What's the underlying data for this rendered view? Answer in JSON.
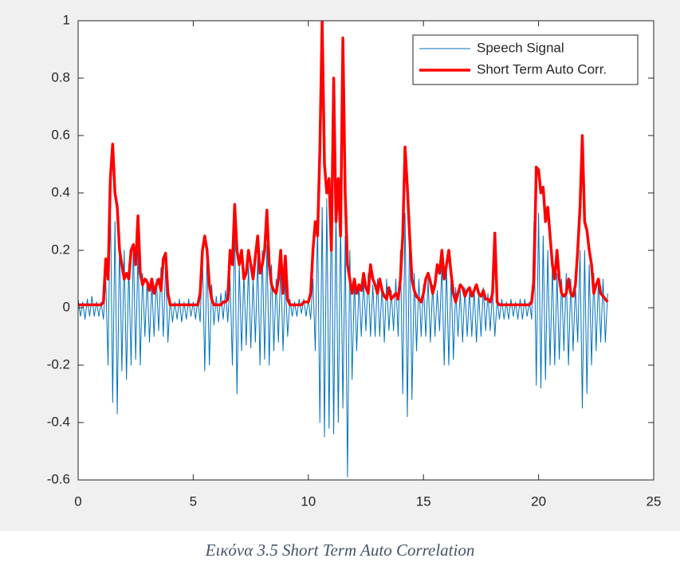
{
  "chart_data": {
    "type": "line",
    "caption": "Εικόνα 3.5 Short Term Auto Correlation",
    "x": [
      0,
      0.1,
      0.2,
      0.3,
      0.4,
      0.5,
      0.6,
      0.7,
      0.8,
      0.9,
      1,
      1.1,
      1.2,
      1.3,
      1.4,
      1.5,
      1.6,
      1.7,
      1.8,
      1.9,
      2,
      2.1,
      2.2,
      2.3,
      2.4,
      2.5,
      2.6,
      2.7,
      2.8,
      2.9,
      3,
      3.1,
      3.2,
      3.3,
      3.4,
      3.5,
      3.6,
      3.7,
      3.8,
      3.9,
      4,
      4.1,
      4.2,
      4.3,
      4.4,
      4.5,
      4.6,
      4.7,
      4.8,
      4.9,
      5,
      5.1,
      5.2,
      5.3,
      5.4,
      5.5,
      5.6,
      5.7,
      5.8,
      5.9,
      6,
      6.1,
      6.2,
      6.3,
      6.4,
      6.5,
      6.6,
      6.7,
      6.8,
      6.9,
      7,
      7.1,
      7.2,
      7.3,
      7.4,
      7.5,
      7.6,
      7.7,
      7.8,
      7.9,
      8,
      8.1,
      8.2,
      8.3,
      8.4,
      8.5,
      8.6,
      8.7,
      8.8,
      8.9,
      9,
      9.1,
      9.2,
      9.3,
      9.4,
      9.5,
      9.6,
      9.7,
      9.8,
      9.9,
      10,
      10.1,
      10.2,
      10.3,
      10.4,
      10.5,
      10.6,
      10.7,
      10.8,
      10.9,
      11,
      11.1,
      11.2,
      11.3,
      11.4,
      11.5,
      11.6,
      11.7,
      11.8,
      11.9,
      12,
      12.1,
      12.2,
      12.3,
      12.4,
      12.5,
      12.6,
      12.7,
      12.8,
      12.9,
      13,
      13.1,
      13.2,
      13.3,
      13.4,
      13.5,
      13.6,
      13.7,
      13.8,
      13.9,
      14,
      14.1,
      14.2,
      14.3,
      14.4,
      14.5,
      14.6,
      14.7,
      14.8,
      14.9,
      15,
      15.1,
      15.2,
      15.3,
      15.4,
      15.5,
      15.6,
      15.7,
      15.8,
      15.9,
      16,
      16.1,
      16.2,
      16.3,
      16.4,
      16.5,
      16.6,
      16.7,
      16.8,
      16.9,
      17,
      17.1,
      17.2,
      17.3,
      17.4,
      17.5,
      17.6,
      17.7,
      17.8,
      17.9,
      18,
      18.1,
      18.2,
      18.3,
      18.4,
      18.5,
      18.6,
      18.7,
      18.8,
      18.9,
      19,
      19.1,
      19.2,
      19.3,
      19.4,
      19.5,
      19.6,
      19.7,
      19.8,
      19.9,
      20,
      20.1,
      20.2,
      20.3,
      20.4,
      20.5,
      20.6,
      20.7,
      20.8,
      20.9,
      21,
      21.1,
      21.2,
      21.3,
      21.4,
      21.5,
      21.6,
      21.7,
      21.8,
      21.9,
      22,
      22.1,
      22.2,
      22.3,
      22.4,
      22.5,
      22.6,
      22.7,
      22.8,
      22.9,
      23
    ],
    "series": [
      {
        "name": "Speech Signal",
        "color": "#0072bd",
        "width": 1,
        "values": [
          0.03,
          -0.03,
          0.02,
          -0.04,
          0.03,
          -0.03,
          0.04,
          -0.03,
          0.02,
          -0.03,
          0.02,
          -0.04,
          0.1,
          -0.2,
          0.39,
          -0.33,
          0.3,
          -0.37,
          0.25,
          -0.22,
          0.2,
          -0.25,
          0.15,
          -0.2,
          0.22,
          -0.18,
          0.2,
          -0.2,
          0.12,
          -0.1,
          0.1,
          -0.12,
          0.08,
          -0.1,
          0.1,
          -0.08,
          0.14,
          -0.1,
          0.15,
          -0.12,
          0.03,
          -0.05,
          0.02,
          -0.04,
          0.03,
          -0.05,
          0.02,
          -0.04,
          0.03,
          -0.03,
          0.02,
          -0.04,
          0.03,
          -0.05,
          0.18,
          -0.22,
          0.2,
          -0.2,
          0.08,
          -0.06,
          0.04,
          -0.05,
          0.05,
          -0.04,
          0.06,
          -0.05,
          0.1,
          -0.2,
          0.3,
          -0.3,
          0.15,
          -0.15,
          0.12,
          -0.13,
          0.15,
          -0.14,
          0.1,
          -0.12,
          0.18,
          -0.2,
          0.2,
          -0.18,
          0.22,
          -0.2,
          0.15,
          -0.15,
          0.1,
          -0.12,
          0.15,
          -0.15,
          0.1,
          -0.1,
          0.03,
          -0.03,
          0.02,
          -0.03,
          0.03,
          -0.02,
          0.03,
          -0.03,
          0.03,
          -0.04,
          0.1,
          -0.15,
          0.3,
          -0.4,
          0.35,
          -0.45,
          0.38,
          -0.42,
          0.4,
          -0.44,
          0.35,
          -0.4,
          0.3,
          -0.35,
          0.25,
          -0.59,
          0.2,
          -0.25,
          0.1,
          -0.15,
          0.08,
          -0.1,
          0.1,
          -0.08,
          0.12,
          -0.1,
          0.08,
          -0.1,
          0.1,
          -0.1,
          0.08,
          -0.12,
          0.1,
          -0.08,
          0.06,
          -0.08,
          0.1,
          -0.1,
          0.2,
          -0.3,
          0.33,
          -0.38,
          0.3,
          -0.32,
          0.12,
          -0.15,
          0.1,
          -0.1,
          0.08,
          -0.1,
          0.1,
          -0.12,
          0.08,
          -0.1,
          0.06,
          -0.08,
          0.15,
          -0.2,
          0.15,
          -0.2,
          0.12,
          -0.18,
          0.07,
          -0.1,
          0.06,
          -0.12,
          0.07,
          -0.1,
          0.06,
          -0.1,
          0.07,
          -0.12,
          0.05,
          -0.1,
          0.07,
          -0.08,
          0.05,
          -0.08,
          0.06,
          -0.1,
          0.03,
          -0.04,
          0.03,
          -0.04,
          0.02,
          -0.04,
          0.03,
          -0.03,
          0.02,
          -0.04,
          0.03,
          -0.04,
          0.03,
          -0.03,
          0.02,
          -0.04,
          0.3,
          -0.27,
          0.33,
          -0.28,
          0.25,
          -0.25,
          0.2,
          -0.2,
          0.15,
          -0.2,
          0.12,
          -0.18,
          0.1,
          -0.15,
          0.12,
          -0.2,
          0.1,
          -0.15,
          0.08,
          -0.12,
          0.2,
          -0.35,
          0.2,
          -0.3,
          0.15,
          -0.2,
          0.12,
          -0.15,
          0.1,
          -0.12,
          0.1,
          -0.12,
          0.05
        ]
      },
      {
        "name": "Short Term Auto Corr.",
        "color": "#ff0000",
        "width": 3.5,
        "values": [
          0.01,
          0.01,
          0.01,
          0.01,
          0.01,
          0.01,
          0.01,
          0.01,
          0.01,
          0.01,
          0.01,
          0.02,
          0.17,
          0.1,
          0.45,
          0.57,
          0.4,
          0.35,
          0.2,
          0.15,
          0.1,
          0.12,
          0.1,
          0.2,
          0.22,
          0.15,
          0.32,
          0.12,
          0.08,
          0.1,
          0.09,
          0.06,
          0.1,
          0.05,
          0.08,
          0.1,
          0.06,
          0.17,
          0.19,
          0.05,
          0.01,
          0.01,
          0.01,
          0.01,
          0.01,
          0.01,
          0.01,
          0.01,
          0.01,
          0.01,
          0.01,
          0.01,
          0.01,
          0.05,
          0.2,
          0.25,
          0.2,
          0.08,
          0.03,
          0.01,
          0.01,
          0.01,
          0.01,
          0.02,
          0.02,
          0.03,
          0.2,
          0.15,
          0.36,
          0.2,
          0.15,
          0.2,
          0.1,
          0.12,
          0.2,
          0.15,
          0.1,
          0.18,
          0.25,
          0.12,
          0.15,
          0.2,
          0.34,
          0.15,
          0.08,
          0.06,
          0.05,
          0.1,
          0.2,
          0.05,
          0.18,
          0.03,
          0.01,
          0.01,
          0.01,
          0.01,
          0.01,
          0.01,
          0.02,
          0.02,
          0.02,
          0.05,
          0.2,
          0.3,
          0.25,
          0.55,
          1.0,
          0.5,
          0.4,
          0.45,
          0.2,
          0.8,
          0.3,
          0.45,
          0.25,
          0.94,
          0.4,
          0.15,
          0.1,
          0.05,
          0.1,
          0.05,
          0.08,
          0.06,
          0.12,
          0.07,
          0.05,
          0.15,
          0.1,
          0.08,
          0.05,
          0.1,
          0.06,
          0.04,
          0.03,
          0.07,
          0.03,
          0.04,
          0.05,
          0.03,
          0.1,
          0.25,
          0.56,
          0.42,
          0.25,
          0.1,
          0.06,
          0.04,
          0.03,
          0.02,
          0.05,
          0.1,
          0.12,
          0.09,
          0.05,
          0.08,
          0.15,
          0.12,
          0.2,
          0.1,
          0.15,
          0.2,
          0.12,
          0.05,
          0.02,
          0.05,
          0.08,
          0.07,
          0.04,
          0.06,
          0.07,
          0.04,
          0.06,
          0.08,
          0.05,
          0.04,
          0.06,
          0.03,
          0.03,
          0.02,
          0.05,
          0.26,
          0.02,
          0.01,
          0.01,
          0.01,
          0.01,
          0.01,
          0.01,
          0.01,
          0.01,
          0.01,
          0.01,
          0.01,
          0.01,
          0.01,
          0.01,
          0.02,
          0.1,
          0.49,
          0.48,
          0.4,
          0.42,
          0.3,
          0.35,
          0.25,
          0.15,
          0.1,
          0.2,
          0.1,
          0.05,
          0.04,
          0.05,
          0.1,
          0.05,
          0.04,
          0.08,
          0.2,
          0.35,
          0.6,
          0.3,
          0.27,
          0.2,
          0.15,
          0.05,
          0.08,
          0.1,
          0.05,
          0.04,
          0.03,
          0.02
        ]
      }
    ],
    "xlim": [
      0,
      25
    ],
    "xticks": [
      0,
      5,
      10,
      15,
      20,
      25
    ],
    "ylim": [
      -0.6,
      1
    ],
    "yticks": [
      -0.6,
      -0.4,
      -0.2,
      0,
      0.2,
      0.4,
      0.6,
      0.8,
      1
    ],
    "legend": "northeast"
  }
}
